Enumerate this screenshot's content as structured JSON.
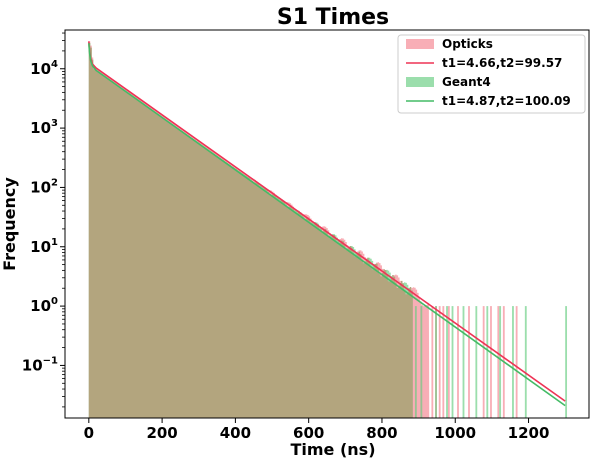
{
  "chart_data": {
    "type": "bar",
    "title": "S1 Times",
    "xlabel": "Time (ns)",
    "ylabel": "Frequency",
    "xlim": [
      -65,
      1365
    ],
    "ylim": [
      0.013,
      45000
    ],
    "yscale": "log",
    "x_ticks": [
      0,
      200,
      400,
      600,
      800,
      1000,
      1200
    ],
    "x_tick_labels": [
      "0",
      "200",
      "400",
      "600",
      "800",
      "1000",
      "1200"
    ],
    "y_ticks": [
      {
        "value": 0.1,
        "base": "10",
        "exp": "−1"
      },
      {
        "value": 1,
        "base": "10",
        "exp": "0"
      },
      {
        "value": 10,
        "base": "10",
        "exp": "1"
      },
      {
        "value": 100,
        "base": "10",
        "exp": "2"
      },
      {
        "value": 1000,
        "base": "10",
        "exp": "3"
      },
      {
        "value": 10000,
        "base": "10",
        "exp": "4"
      }
    ],
    "legend_position": "top-right",
    "series": [
      {
        "name": "Opticks",
        "kind": "histogram",
        "color": "#f4828f",
        "opacity": 0.65,
        "peak": 29000,
        "decay_start": 11000,
        "tau": 99.57,
        "continuous_until": 925,
        "spikes": [
          [
            935,
            1
          ],
          [
            945,
            1
          ],
          [
            955,
            1
          ],
          [
            965,
            1
          ],
          [
            980,
            1
          ],
          [
            1005,
            1
          ],
          [
            1035,
            1
          ],
          [
            1075,
            1
          ],
          [
            1095,
            1
          ],
          [
            1115,
            1
          ],
          [
            1130,
            1
          ],
          [
            1165,
            1
          ]
        ]
      },
      {
        "name": "t1=4.66,t2=99.57",
        "kind": "fit",
        "color": "#ee3355",
        "t1": 4.66,
        "t2": 99.57,
        "curve": [
          [
            0,
            29000
          ],
          [
            2,
            20000
          ],
          [
            5,
            15000
          ],
          [
            10,
            12000
          ],
          [
            20,
            10300
          ],
          [
            1300,
            0.025
          ]
        ]
      },
      {
        "name": "Geant4",
        "kind": "histogram",
        "color": "#66cc80",
        "opacity": 0.65,
        "peak": 27000,
        "decay_start": 10000,
        "tau": 100.09,
        "continuous_until": 880,
        "spikes": [
          [
            890,
            1
          ],
          [
            905,
            1
          ],
          [
            945,
            1
          ],
          [
            975,
            1
          ],
          [
            990,
            1
          ],
          [
            1020,
            1
          ],
          [
            1055,
            1
          ],
          [
            1085,
            1
          ],
          [
            1120,
            1
          ],
          [
            1155,
            1
          ],
          [
            1190,
            1
          ],
          [
            1300,
            1
          ]
        ]
      },
      {
        "name": "t1=4.87,t2=100.09",
        "kind": "fit",
        "color": "#44bb66",
        "t1": 4.87,
        "t2": 100.09,
        "curve": [
          [
            0,
            27000
          ],
          [
            2,
            18500
          ],
          [
            5,
            13800
          ],
          [
            10,
            11200
          ],
          [
            20,
            9400
          ],
          [
            1300,
            0.021
          ]
        ]
      }
    ],
    "overlap_color": "#b3a57e"
  }
}
